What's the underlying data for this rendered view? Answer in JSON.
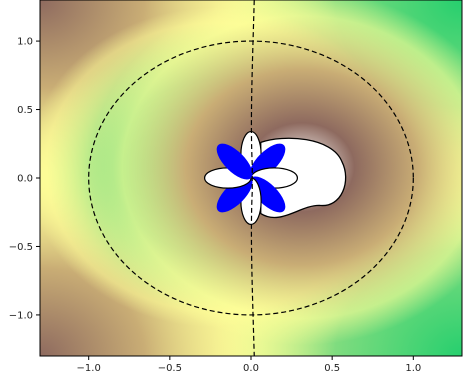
{
  "chart_data": {
    "type": "heatmap",
    "title": "",
    "xlabel": "",
    "ylabel": "",
    "xlim": [
      -1.3,
      1.3
    ],
    "ylim": [
      -1.3,
      1.3
    ],
    "x_ticks": [
      -1.0,
      -0.5,
      0.0,
      0.5,
      1.0
    ],
    "x_tick_labels": [
      "−1.0",
      "−0.5",
      "0.0",
      "0.5",
      "1.0"
    ],
    "y_ticks": [
      -1.0,
      -0.5,
      0.0,
      0.5,
      1.0
    ],
    "y_tick_labels": [
      "−1.0",
      "−0.5",
      "0.0",
      "0.5",
      "1.0"
    ],
    "grid": false,
    "legend": "none",
    "colormap": "terrain",
    "colormap_colors": [
      "#0000ff",
      "#00a6ff",
      "#26cf6e",
      "#7fdc7f",
      "#fefe98",
      "#c9ad75",
      "#8e6a5f",
      "#ffffff"
    ],
    "contour_lines": [
      {
        "name": "unit circle",
        "style": "dashed",
        "center": [
          0,
          0
        ],
        "radius": 1.0
      },
      {
        "name": "vertical nodal line",
        "style": "dashed",
        "approx_x": 0.02
      }
    ],
    "petals": {
      "count": 8,
      "center": [
        0,
        0
      ],
      "radius": 0.26,
      "colors": [
        "#ffffff",
        "#0000ff"
      ]
    },
    "lobe": {
      "center": [
        0.38,
        0.0
      ],
      "color": "#ffffff",
      "outline": "solid"
    }
  }
}
